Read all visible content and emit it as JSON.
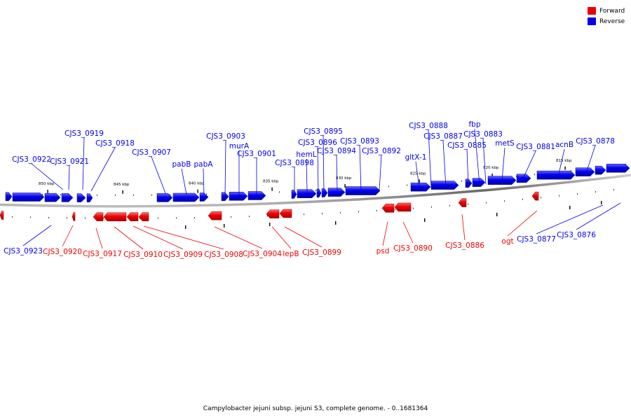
{
  "legend": {
    "forward_label": "Forward",
    "reverse_label": "Reverse",
    "forward_color": "#ee0000",
    "reverse_color": "#0000ee"
  },
  "caption": "Campylobacter jejuni subsp. jejuni S3, complete genome. - 0..1681364",
  "scale_labels": [
    "850 kbp",
    "845 kbp",
    "840 kbp",
    "835 kbp",
    "830 kbp",
    "825 kbp",
    "820 kbp",
    "815 kbp"
  ],
  "reverse_genes": [
    "CJS3_0922",
    "CJS3_0921",
    "CJS3_0919",
    "CJS3_0918",
    "CJS3_0907",
    "pabB",
    "pabA",
    "CJS3_0903",
    "murA",
    "CJS3_0901",
    "CJS3_0898",
    "hemL",
    "CJS3_0896",
    "CJS3_0895",
    "CJS3_0894",
    "CJS3_0893",
    "CJS3_0892",
    "gltX-1",
    "CJS3_0888",
    "CJS3_0887",
    "CJS3_0885",
    "fbp",
    "CJS3_0883",
    "metS",
    "CJS3_0881",
    "acnB",
    "CJS3_0878"
  ],
  "bottom_genes": [
    {
      "name": "CJS3_0923",
      "strand": "reverse"
    },
    {
      "name": "CJS3_0920",
      "strand": "forward"
    },
    {
      "name": "CJS3_0917",
      "strand": "forward"
    },
    {
      "name": "CJS3_0910",
      "strand": "forward"
    },
    {
      "name": "CJS3_0909",
      "strand": "forward"
    },
    {
      "name": "CJS3_0908",
      "strand": "forward"
    },
    {
      "name": "CJS3_0904",
      "strand": "forward"
    },
    {
      "name": "lepB",
      "strand": "forward"
    },
    {
      "name": "CJS3_0899",
      "strand": "forward"
    },
    {
      "name": "psd",
      "strand": "forward"
    },
    {
      "name": "CJS3_0890",
      "strand": "forward"
    },
    {
      "name": "CJS3_0886",
      "strand": "forward"
    },
    {
      "name": "ogt",
      "strand": "forward"
    },
    {
      "name": "CJS3_0877",
      "strand": "reverse"
    },
    {
      "name": "CJS3_0876",
      "strand": "reverse"
    }
  ]
}
